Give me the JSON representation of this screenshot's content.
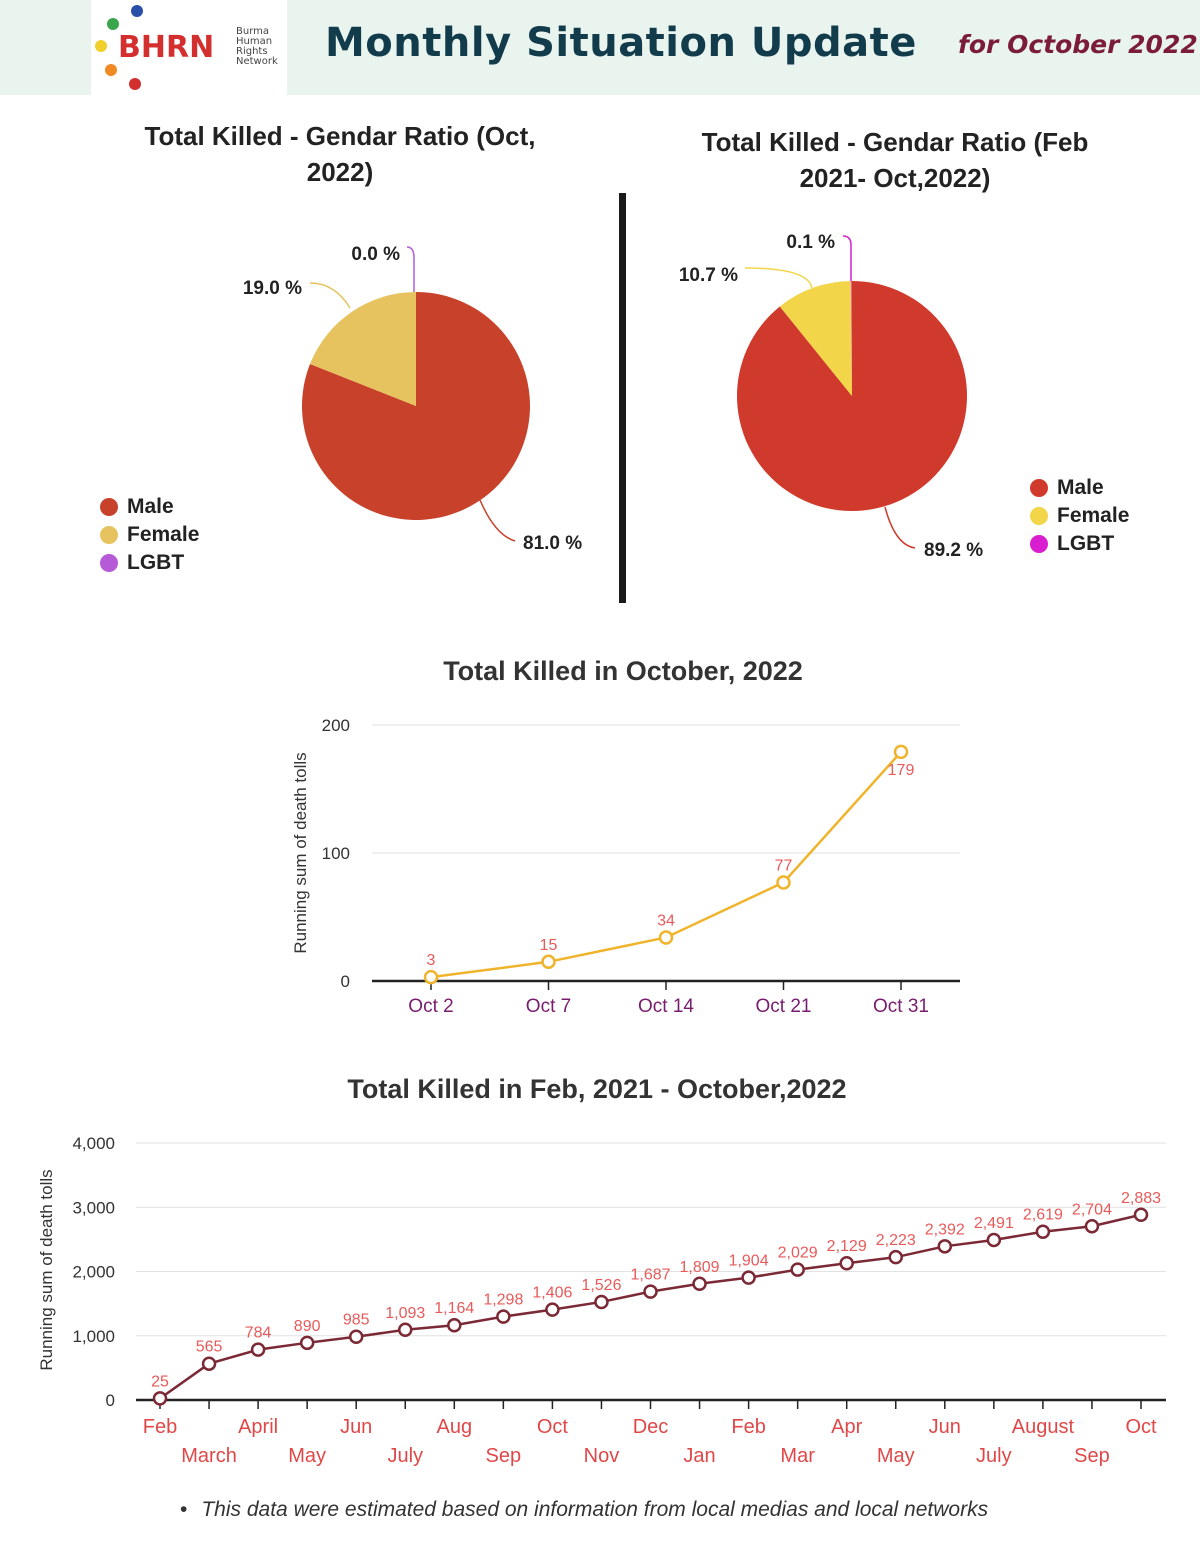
{
  "header": {
    "logo_text": "BHRN",
    "logo_subtitle": "Burma\nHuman\nRights\nNetwork",
    "title": "Monthly Situation Update",
    "date": "for October 2022"
  },
  "colors": {
    "male_oct": "#c8412a",
    "female_oct": "#e6c35e",
    "lgbt_oct": "#b65bd7",
    "male_all": "#d03a2d",
    "female_all": "#f2d548",
    "lgbt_all": "#d81ed0",
    "line_oct": "#f0b42c",
    "line_all": "#7b2935",
    "label_red": "#e85a5a"
  },
  "footnote": "This data were estimated based on information from local medias and local networks",
  "chart_data": [
    {
      "type": "pie",
      "title": "Total Killed - Gendar Ratio (Oct, 2022)",
      "legend": [
        "Male",
        "Female",
        "LGBT"
      ],
      "slice_labels": [
        "81.0 %",
        "19.0 %",
        "0.0 %"
      ],
      "values": [
        81.0,
        19.0,
        0.0
      ],
      "legend_position": "bottom-left"
    },
    {
      "type": "pie",
      "title": "Total Killed - Gendar Ratio (Feb 2021- Oct,2022)",
      "legend": [
        "Male",
        "Female",
        "LGBT"
      ],
      "slice_labels": [
        "89.2 %",
        "10.7 %",
        "0.1 %"
      ],
      "values": [
        89.2,
        10.7,
        0.1
      ],
      "legend_position": "right"
    },
    {
      "type": "line",
      "title": "Total Killed in October, 2022",
      "ylabel": "Running sum of death tolls",
      "x": [
        "Oct 2",
        "Oct 7",
        "Oct 14",
        "Oct 21",
        "Oct 31"
      ],
      "values": [
        3,
        15,
        34,
        77,
        179
      ],
      "yticks": [
        "0",
        "100",
        "200"
      ],
      "ylim": [
        0,
        200
      ],
      "grid": true
    },
    {
      "type": "line",
      "title": "Total Killed in Feb, 2021 - October,2022",
      "ylabel": "Running sum of death tolls",
      "x": [
        "Feb",
        "March",
        "April",
        "May",
        "Jun",
        "July",
        "Aug",
        "Sep",
        "Oct",
        "Nov",
        "Dec",
        "Jan",
        "Feb",
        "Mar",
        "Apr",
        "May",
        "Jun",
        "July",
        "August",
        "Sep",
        "Oct"
      ],
      "values": [
        25,
        565,
        784,
        890,
        985,
        1093,
        1164,
        1298,
        1406,
        1526,
        1687,
        1809,
        1904,
        2029,
        2129,
        2223,
        2392,
        2491,
        2619,
        2704,
        2883
      ],
      "data_labels": [
        "25",
        "565",
        "784",
        "890",
        "985",
        "1,093",
        "1,164",
        "1,298",
        "1,406",
        "1,526",
        "1,687",
        "1,809",
        "1,904",
        "2,029",
        "2,129",
        "2,223",
        "2,392",
        "2,491",
        "2,619",
        "2,704",
        "2,883"
      ],
      "yticks": [
        "0",
        "1,000",
        "2,000",
        "3,000",
        "4,000"
      ],
      "ylim": [
        0,
        4000
      ],
      "grid": true
    }
  ]
}
